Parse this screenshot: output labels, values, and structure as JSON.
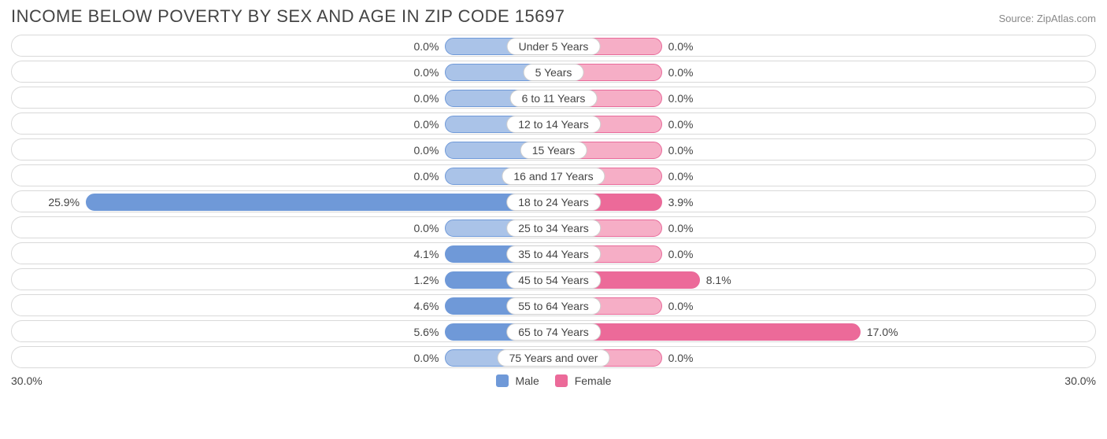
{
  "title": "INCOME BELOW POVERTY BY SEX AND AGE IN ZIP CODE 15697",
  "source": "Source: ZipAtlas.com",
  "axis_max_pct": 30.0,
  "axis_label_left": "30.0%",
  "axis_label_right": "30.0%",
  "min_bar_pct": 6.0,
  "track_border_color": "#d9d9d9",
  "track_bg": "#ffffff",
  "text_color": "#444444",
  "male": {
    "label": "Male",
    "fill_zero": "#aac3e8",
    "fill_value": "#6f99d8",
    "border": "#6f99d8"
  },
  "female": {
    "label": "Female",
    "fill_zero": "#f6aec6",
    "fill_value": "#ec6a99",
    "border": "#e86a9a"
  },
  "categories": [
    {
      "label": "Under 5 Years",
      "male": 0.0,
      "female": 0.0
    },
    {
      "label": "5 Years",
      "male": 0.0,
      "female": 0.0
    },
    {
      "label": "6 to 11 Years",
      "male": 0.0,
      "female": 0.0
    },
    {
      "label": "12 to 14 Years",
      "male": 0.0,
      "female": 0.0
    },
    {
      "label": "15 Years",
      "male": 0.0,
      "female": 0.0
    },
    {
      "label": "16 and 17 Years",
      "male": 0.0,
      "female": 0.0
    },
    {
      "label": "18 to 24 Years",
      "male": 25.9,
      "female": 3.9
    },
    {
      "label": "25 to 34 Years",
      "male": 0.0,
      "female": 0.0
    },
    {
      "label": "35 to 44 Years",
      "male": 4.1,
      "female": 0.0
    },
    {
      "label": "45 to 54 Years",
      "male": 1.2,
      "female": 8.1
    },
    {
      "label": "55 to 64 Years",
      "male": 4.6,
      "female": 0.0
    },
    {
      "label": "65 to 74 Years",
      "male": 5.6,
      "female": 17.0
    },
    {
      "label": "75 Years and over",
      "male": 0.0,
      "female": 0.0
    }
  ]
}
